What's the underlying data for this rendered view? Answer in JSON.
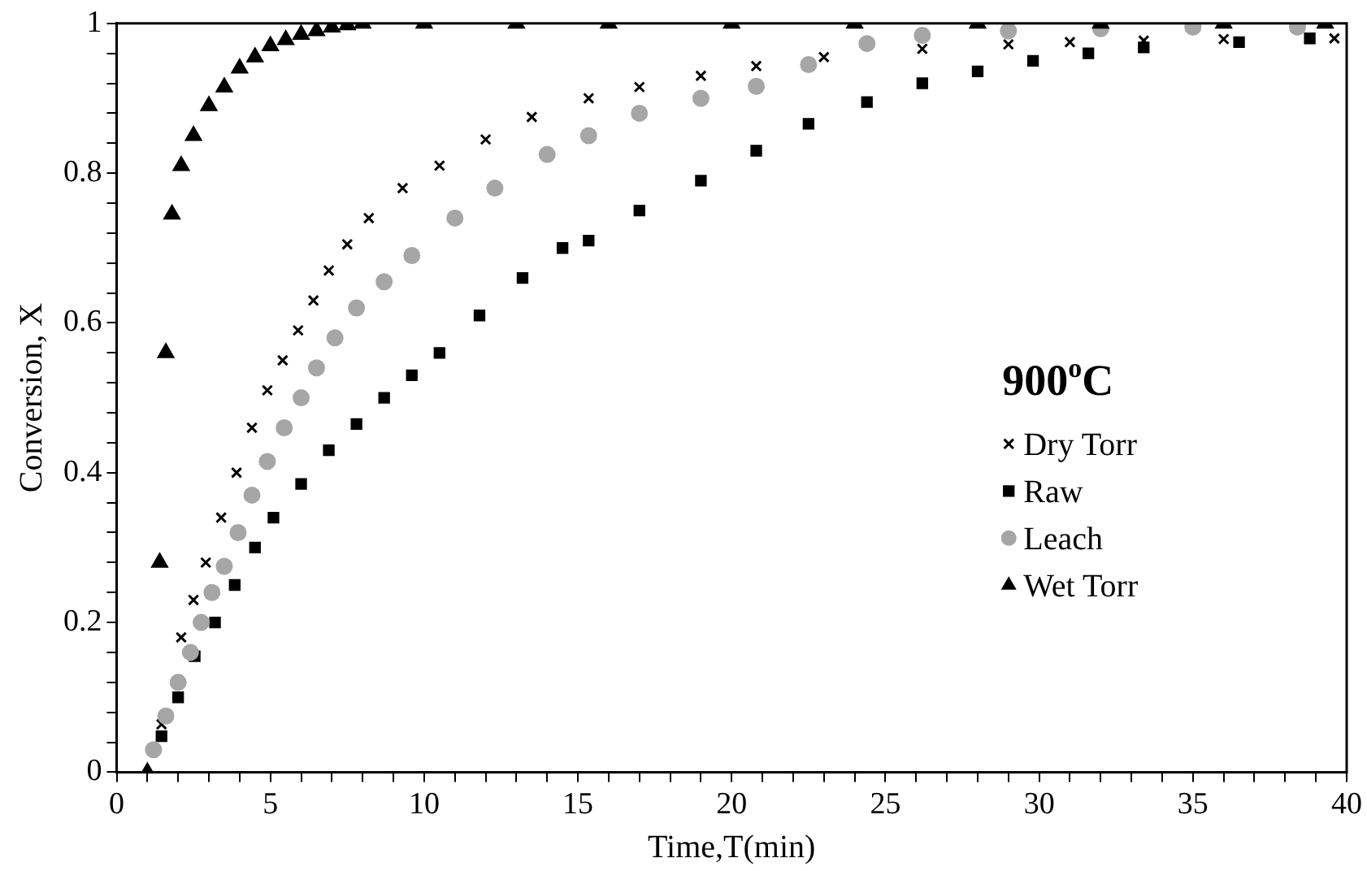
{
  "chart_data": {
    "type": "scatter",
    "xlabel": "Time,T(min)",
    "ylabel": "Conversion, X",
    "legend_title": "900$^{o}$C",
    "legend": "right",
    "grid": false,
    "xlim": [
      0,
      40
    ],
    "ylim": [
      0,
      1
    ],
    "xticks": [
      0,
      {
        "value": 1,
        "label": null
      },
      {
        "value": 2,
        "label": null
      },
      {
        "value": 3,
        "label": null
      },
      {
        "value": 4,
        "label": null
      },
      5,
      {
        "value": 6,
        "label": null
      },
      {
        "value": 7,
        "label": null
      },
      {
        "value": 8,
        "label": null
      },
      {
        "value": 9,
        "label": null
      },
      10,
      {
        "value": 11,
        "label": null
      },
      {
        "value": 12,
        "label": null
      },
      {
        "value": 13,
        "label": null
      },
      {
        "value": 14,
        "label": null
      },
      15,
      {
        "value": 16,
        "label": null
      },
      {
        "value": 17,
        "label": null
      },
      {
        "value": 18,
        "label": null
      },
      {
        "value": 19,
        "label": null
      },
      20,
      {
        "value": 21,
        "label": null
      },
      {
        "value": 22,
        "label": null
      },
      {
        "value": 23,
        "label": null
      },
      {
        "value": 24,
        "label": null
      },
      25,
      {
        "value": 26,
        "label": null
      },
      {
        "value": 27,
        "label": null
      },
      {
        "value": 28,
        "label": null
      },
      {
        "value": 29,
        "label": null
      },
      30,
      {
        "value": 31,
        "label": null
      },
      {
        "value": 32,
        "label": null
      },
      {
        "value": 33,
        "label": null
      },
      {
        "value": 34,
        "label": null
      },
      35,
      {
        "value": 36,
        "label": null
      },
      {
        "value": 37,
        "label": null
      },
      {
        "value": 38,
        "label": null
      },
      {
        "value": 39,
        "label": null
      },
      40
    ],
    "yticks": [
      0,
      {
        "value": 0.04,
        "label": null
      },
      {
        "value": 0.08,
        "label": null
      },
      {
        "value": 0.12,
        "label": null
      },
      {
        "value": 0.16,
        "label": null
      },
      0.2,
      {
        "value": 0.24,
        "label": null
      },
      {
        "value": 0.28,
        "label": null
      },
      {
        "value": 0.32,
        "label": null
      },
      {
        "value": 0.36,
        "label": null
      },
      0.4,
      {
        "value": 0.44,
        "label": null
      },
      {
        "value": 0.48,
        "label": null
      },
      {
        "value": 0.52,
        "label": null
      },
      {
        "value": 0.56,
        "label": null
      },
      0.6,
      {
        "value": 0.64,
        "label": null
      },
      {
        "value": 0.68,
        "label": null
      },
      {
        "value": 0.72,
        "label": null
      },
      {
        "value": 0.76,
        "label": null
      },
      0.8,
      {
        "value": 0.84,
        "label": null
      },
      {
        "value": 0.88,
        "label": null
      },
      {
        "value": 0.92,
        "label": null
      },
      {
        "value": 0.96,
        "label": null
      },
      1
    ],
    "series": [
      {
        "name": "Dry Torr",
        "color": "#000000",
        "marker": "cross",
        "x": [
          1.46,
          2.1,
          2.5,
          2.9,
          3.4,
          3.9,
          4.4,
          4.9,
          5.4,
          5.9,
          6.4,
          6.9,
          7.5,
          8.2,
          9.3,
          10.5,
          12,
          13.5,
          15.35,
          17,
          19,
          20.8,
          23,
          26.2,
          29,
          31,
          33.4,
          36,
          39.6
        ],
        "values": [
          0.064,
          0.18,
          0.23,
          0.28,
          0.34,
          0.4,
          0.46,
          0.51,
          0.55,
          0.59,
          0.63,
          0.67,
          0.705,
          0.74,
          0.78,
          0.81,
          0.845,
          0.875,
          0.9,
          0.915,
          0.93,
          0.943,
          0.955,
          0.966,
          0.972,
          0.975,
          0.977,
          0.979,
          0.98
        ]
      },
      {
        "name": "Raw",
        "color": "#000000",
        "marker": "square",
        "x": [
          1.46,
          2,
          2.54,
          3.2,
          3.84,
          4.5,
          5.1,
          6,
          6.9,
          7.8,
          8.7,
          9.6,
          10.5,
          11.8,
          13.2,
          14.5,
          15.35,
          17,
          19,
          20.8,
          22.5,
          24.4,
          26.2,
          28,
          29.8,
          31.6,
          33.4,
          36.5,
          38.8
        ],
        "values": [
          0.048,
          0.1,
          0.155,
          0.2,
          0.25,
          0.3,
          0.34,
          0.385,
          0.43,
          0.465,
          0.5,
          0.53,
          0.56,
          0.61,
          0.66,
          0.7,
          0.71,
          0.75,
          0.79,
          0.83,
          0.866,
          0.895,
          0.92,
          0.936,
          0.95,
          0.96,
          0.968,
          0.975,
          0.98
        ]
      },
      {
        "name": "Leach",
        "color": "#a6a6a6",
        "marker": "circle",
        "x": [
          1.2,
          1.6,
          2,
          2.4,
          2.75,
          3.1,
          3.5,
          3.95,
          4.4,
          4.9,
          5.45,
          6,
          6.5,
          7.1,
          7.8,
          8.7,
          9.6,
          11,
          12.3,
          14,
          15.35,
          17,
          19,
          20.8,
          22.5,
          24.4,
          26.2,
          29,
          32,
          35,
          38.4
        ],
        "values": [
          0.03,
          0.075,
          0.12,
          0.16,
          0.2,
          0.24,
          0.275,
          0.32,
          0.37,
          0.415,
          0.46,
          0.5,
          0.54,
          0.58,
          0.62,
          0.655,
          0.69,
          0.74,
          0.78,
          0.825,
          0.85,
          0.88,
          0.9,
          0.916,
          0.945,
          0.973,
          0.984,
          0.99,
          0.993,
          0.995,
          0.995
        ]
      },
      {
        "name": "Wet Torr",
        "color": "#000000",
        "marker": "triangle",
        "x": [
          1,
          1.4,
          1.6,
          1.8,
          2.1,
          2.5,
          3,
          3.5,
          4,
          4.5,
          5,
          5.5,
          6,
          6.5,
          7,
          7.5,
          8,
          10,
          13,
          16,
          20,
          24,
          28,
          32,
          36,
          39.3
        ],
        "values": [
          0,
          0.28,
          0.56,
          0.745,
          0.81,
          0.85,
          0.89,
          0.915,
          0.94,
          0.955,
          0.97,
          0.978,
          0.985,
          0.99,
          0.995,
          0.998,
          1,
          1,
          1,
          1,
          1,
          1,
          1,
          1,
          1,
          1
        ]
      }
    ]
  }
}
